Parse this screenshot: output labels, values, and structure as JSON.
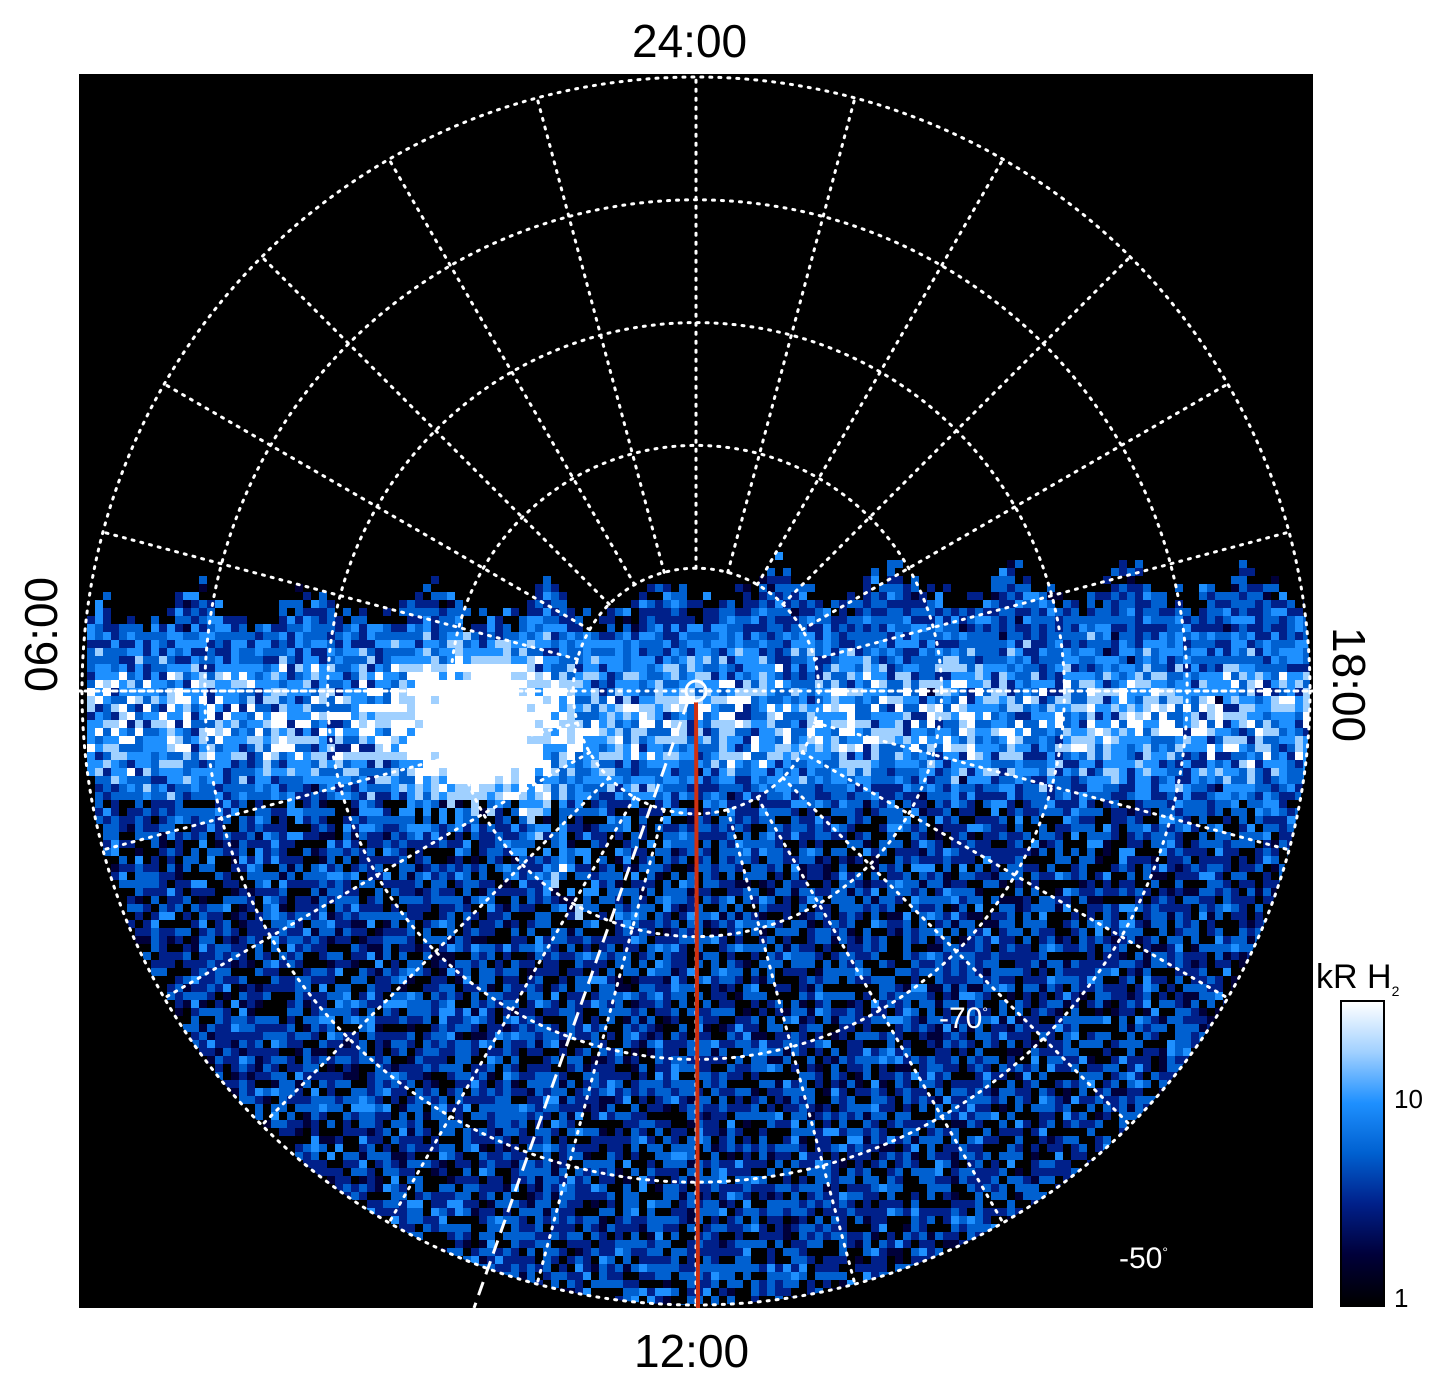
{
  "chart_data": {
    "type": "heatmap",
    "projection": "polar, southern hemisphere",
    "local_time_labels": {
      "top": "24:00",
      "bottom": "12:00",
      "left": "06:00",
      "right": "18:00"
    },
    "latitude_labels": [
      "-70",
      "-50"
    ],
    "degree_symbol": "°",
    "latitude_circles": [
      -80,
      -70,
      -60,
      -50,
      -40
    ],
    "meridians_count": 24,
    "colorbar": {
      "title": "kR H",
      "title_subscript": "2",
      "scale": "log",
      "range": [
        1,
        25
      ],
      "ticks": [
        "10",
        "1"
      ],
      "colors": [
        "#000000",
        "#00003a",
        "#00208a",
        "#0060d0",
        "#1e90ff",
        "#a0d0ff",
        "#ffffff"
      ]
    },
    "grid": true,
    "subspacecraft_meridian_color": "#d03010"
  }
}
